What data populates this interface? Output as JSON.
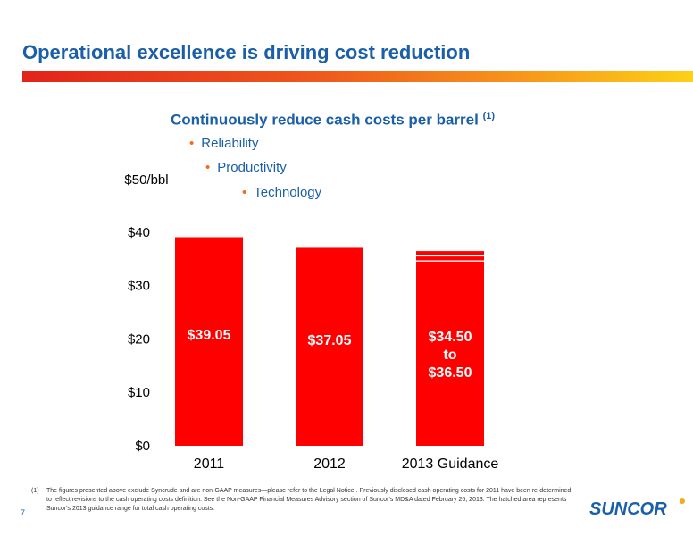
{
  "slide": {
    "title": "Operational excellence is driving cost reduction",
    "subtitle": "Continuously reduce cash costs per barrel",
    "subtitle_ref": "(1)",
    "bullets": [
      "Reliability",
      "Productivity",
      "Technology"
    ],
    "page_number": "7",
    "footnote_number": "(1)",
    "footnote": "The figures presented above exclude Syncrude and are non-GAAP measures—please refer to the Legal Notice . Previously disclosed cash operating costs for 2011 have been re-determined to reflect revisions to the cash operating costs definition. See the Non-GAAP Financial Measures Advisory section of Suncor's MD&A dated February 26, 2013. The hatched area represents Suncor's 2013 guidance range for total cash operating costs.",
    "logo_text": "SUNCOR"
  },
  "colors": {
    "title": "#1a5fa8",
    "bar": "#ff0000",
    "bullet_dot": "#f26a21",
    "logo_sun": "#f7a81b"
  },
  "chart_data": {
    "type": "bar",
    "categories": [
      "2011",
      "2012",
      "2013 Guidance"
    ],
    "values": [
      39.05,
      37.05,
      34.5
    ],
    "range_upper": [
      null,
      null,
      36.5
    ],
    "data_labels": [
      [
        "$39.05"
      ],
      [
        "$37.05"
      ],
      [
        "$34.50",
        "to",
        "$36.50"
      ]
    ],
    "ylabel": "$50/bbl",
    "ylim": [
      0,
      50
    ],
    "yticks": [
      0,
      10,
      20,
      30,
      40
    ],
    "ytick_labels": [
      "$0",
      "$10",
      "$20",
      "$30",
      "$40"
    ],
    "grid": false,
    "hatched_range_on": "2013 Guidance"
  }
}
